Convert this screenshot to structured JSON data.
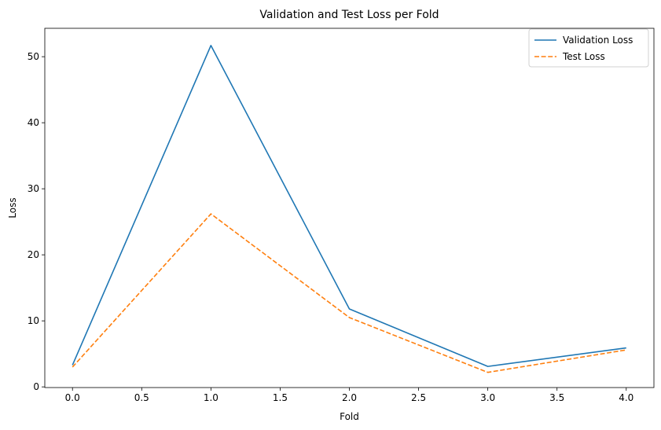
{
  "chart_data": {
    "type": "line",
    "title": "Validation and Test Loss per Fold",
    "xlabel": "Fold",
    "ylabel": "Loss",
    "x": [
      0,
      1,
      2,
      3,
      4
    ],
    "xlim": [
      -0.2,
      4.2
    ],
    "ylim": [
      -0.1,
      54.3
    ],
    "xticks": [
      0.0,
      0.5,
      1.0,
      1.5,
      2.0,
      2.5,
      3.0,
      3.5,
      4.0
    ],
    "xtick_labels": [
      "0.0",
      "0.5",
      "1.0",
      "1.5",
      "2.0",
      "2.5",
      "3.0",
      "3.5",
      "4.0"
    ],
    "yticks": [
      0,
      10,
      20,
      30,
      40,
      50
    ],
    "ytick_labels": [
      "0",
      "10",
      "20",
      "30",
      "40",
      "50"
    ],
    "grid": false,
    "legend": "top-right",
    "series": [
      {
        "name": "Validation Loss",
        "values": [
          3.3,
          51.7,
          11.8,
          3.1,
          5.9
        ],
        "color": "#1f77b4",
        "style": "solid"
      },
      {
        "name": "Test Loss",
        "values": [
          3.0,
          26.2,
          10.5,
          2.2,
          5.6
        ],
        "color": "#ff7f0e",
        "style": "dashed"
      }
    ]
  }
}
